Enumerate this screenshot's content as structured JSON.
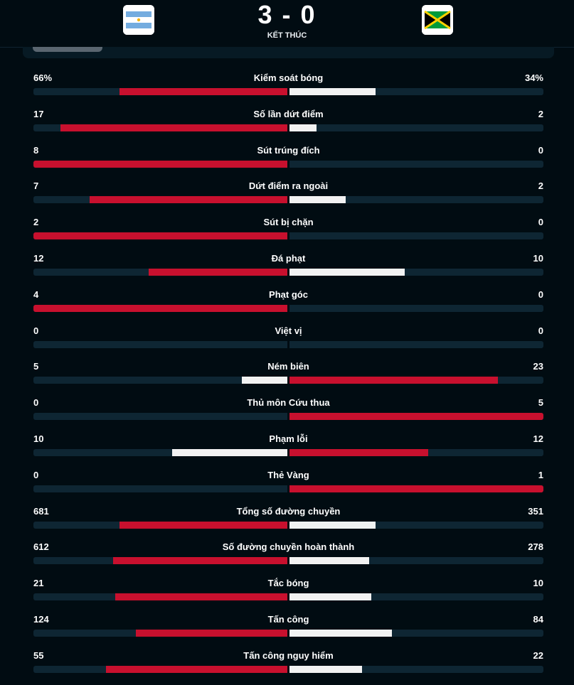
{
  "match": {
    "score": "3 - 0",
    "status": "KẾT THÚC",
    "home_flag": "argentina-flag-icon",
    "away_flag": "jamaica-flag-icon"
  },
  "colors": {
    "winner": "#c8102e",
    "loser": "#f2f2f2",
    "track": "#0e2633",
    "background": "#010c12"
  },
  "stats": [
    {
      "label": "Kiểm soát bóng",
      "home": "66%",
      "away": "34%",
      "home_value": 66,
      "away_value": 34
    },
    {
      "label": "Số lần dứt điểm",
      "home": "17",
      "away": "2",
      "home_value": 17,
      "away_value": 2
    },
    {
      "label": "Sút trúng đích",
      "home": "8",
      "away": "0",
      "home_value": 8,
      "away_value": 0
    },
    {
      "label": "Dứt điểm ra ngoài",
      "home": "7",
      "away": "2",
      "home_value": 7,
      "away_value": 2
    },
    {
      "label": "Sút bị chặn",
      "home": "2",
      "away": "0",
      "home_value": 2,
      "away_value": 0
    },
    {
      "label": "Đá phạt",
      "home": "12",
      "away": "10",
      "home_value": 12,
      "away_value": 10
    },
    {
      "label": "Phạt góc",
      "home": "4",
      "away": "0",
      "home_value": 4,
      "away_value": 0
    },
    {
      "label": "Việt vị",
      "home": "0",
      "away": "0",
      "home_value": 0,
      "away_value": 0
    },
    {
      "label": "Ném biên",
      "home": "5",
      "away": "23",
      "home_value": 5,
      "away_value": 23
    },
    {
      "label": "Thủ môn Cứu thua",
      "home": "0",
      "away": "5",
      "home_value": 0,
      "away_value": 5
    },
    {
      "label": "Phạm lỗi",
      "home": "10",
      "away": "12",
      "home_value": 10,
      "away_value": 12
    },
    {
      "label": "Thẻ Vàng",
      "home": "0",
      "away": "1",
      "home_value": 0,
      "away_value": 1
    },
    {
      "label": "Tổng số đường chuyền",
      "home": "681",
      "away": "351",
      "home_value": 681,
      "away_value": 351
    },
    {
      "label": "Số đường chuyền hoàn thành",
      "home": "612",
      "away": "278",
      "home_value": 612,
      "away_value": 278
    },
    {
      "label": "Tắc bóng",
      "home": "21",
      "away": "10",
      "home_value": 21,
      "away_value": 10
    },
    {
      "label": "Tấn công",
      "home": "124",
      "away": "84",
      "home_value": 124,
      "away_value": 84
    },
    {
      "label": "Tấn công nguy hiểm",
      "home": "55",
      "away": "22",
      "home_value": 55,
      "away_value": 22
    }
  ]
}
